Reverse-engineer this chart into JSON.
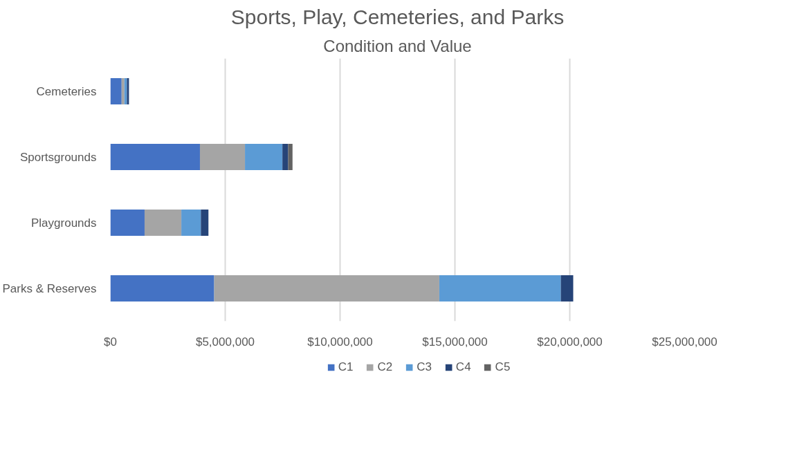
{
  "chart_data": {
    "type": "bar",
    "orientation": "horizontal",
    "stacked": true,
    "title": "Sports, Play, Cemeteries, and Parks",
    "subtitle": "Condition and Value",
    "categories": [
      "Cemeteries",
      "Sportsgrounds",
      "Playgrounds",
      "Parks & Reserves"
    ],
    "series": [
      {
        "name": "C1",
        "color": "#4472c4",
        "values": [
          490000,
          3900000,
          1490000,
          4520000
        ]
      },
      {
        "name": "C2",
        "color": "#a5a5a5",
        "values": [
          120000,
          1960000,
          1600000,
          9800000
        ]
      },
      {
        "name": "C3",
        "color": "#5b9bd5",
        "values": [
          110000,
          1630000,
          850000,
          5290000
        ]
      },
      {
        "name": "C4",
        "color": "#264478",
        "values": [
          90000,
          250000,
          330000,
          540000
        ]
      },
      {
        "name": "C5",
        "color": "#636363",
        "values": [
          null,
          190000,
          null,
          null
        ]
      }
    ],
    "xlim": [
      0,
      25000000
    ],
    "xticks": [
      {
        "value": 0,
        "label": "$0"
      },
      {
        "value": 5000000,
        "label": "$5,000,000"
      },
      {
        "value": 10000000,
        "label": "$10,000,000"
      },
      {
        "value": 15000000,
        "label": "$15,000,000"
      },
      {
        "value": 20000000,
        "label": "$20,000,000"
      },
      {
        "value": 25000000,
        "label": "$25,000,000"
      }
    ],
    "grid": "x",
    "legend": "bottom"
  }
}
